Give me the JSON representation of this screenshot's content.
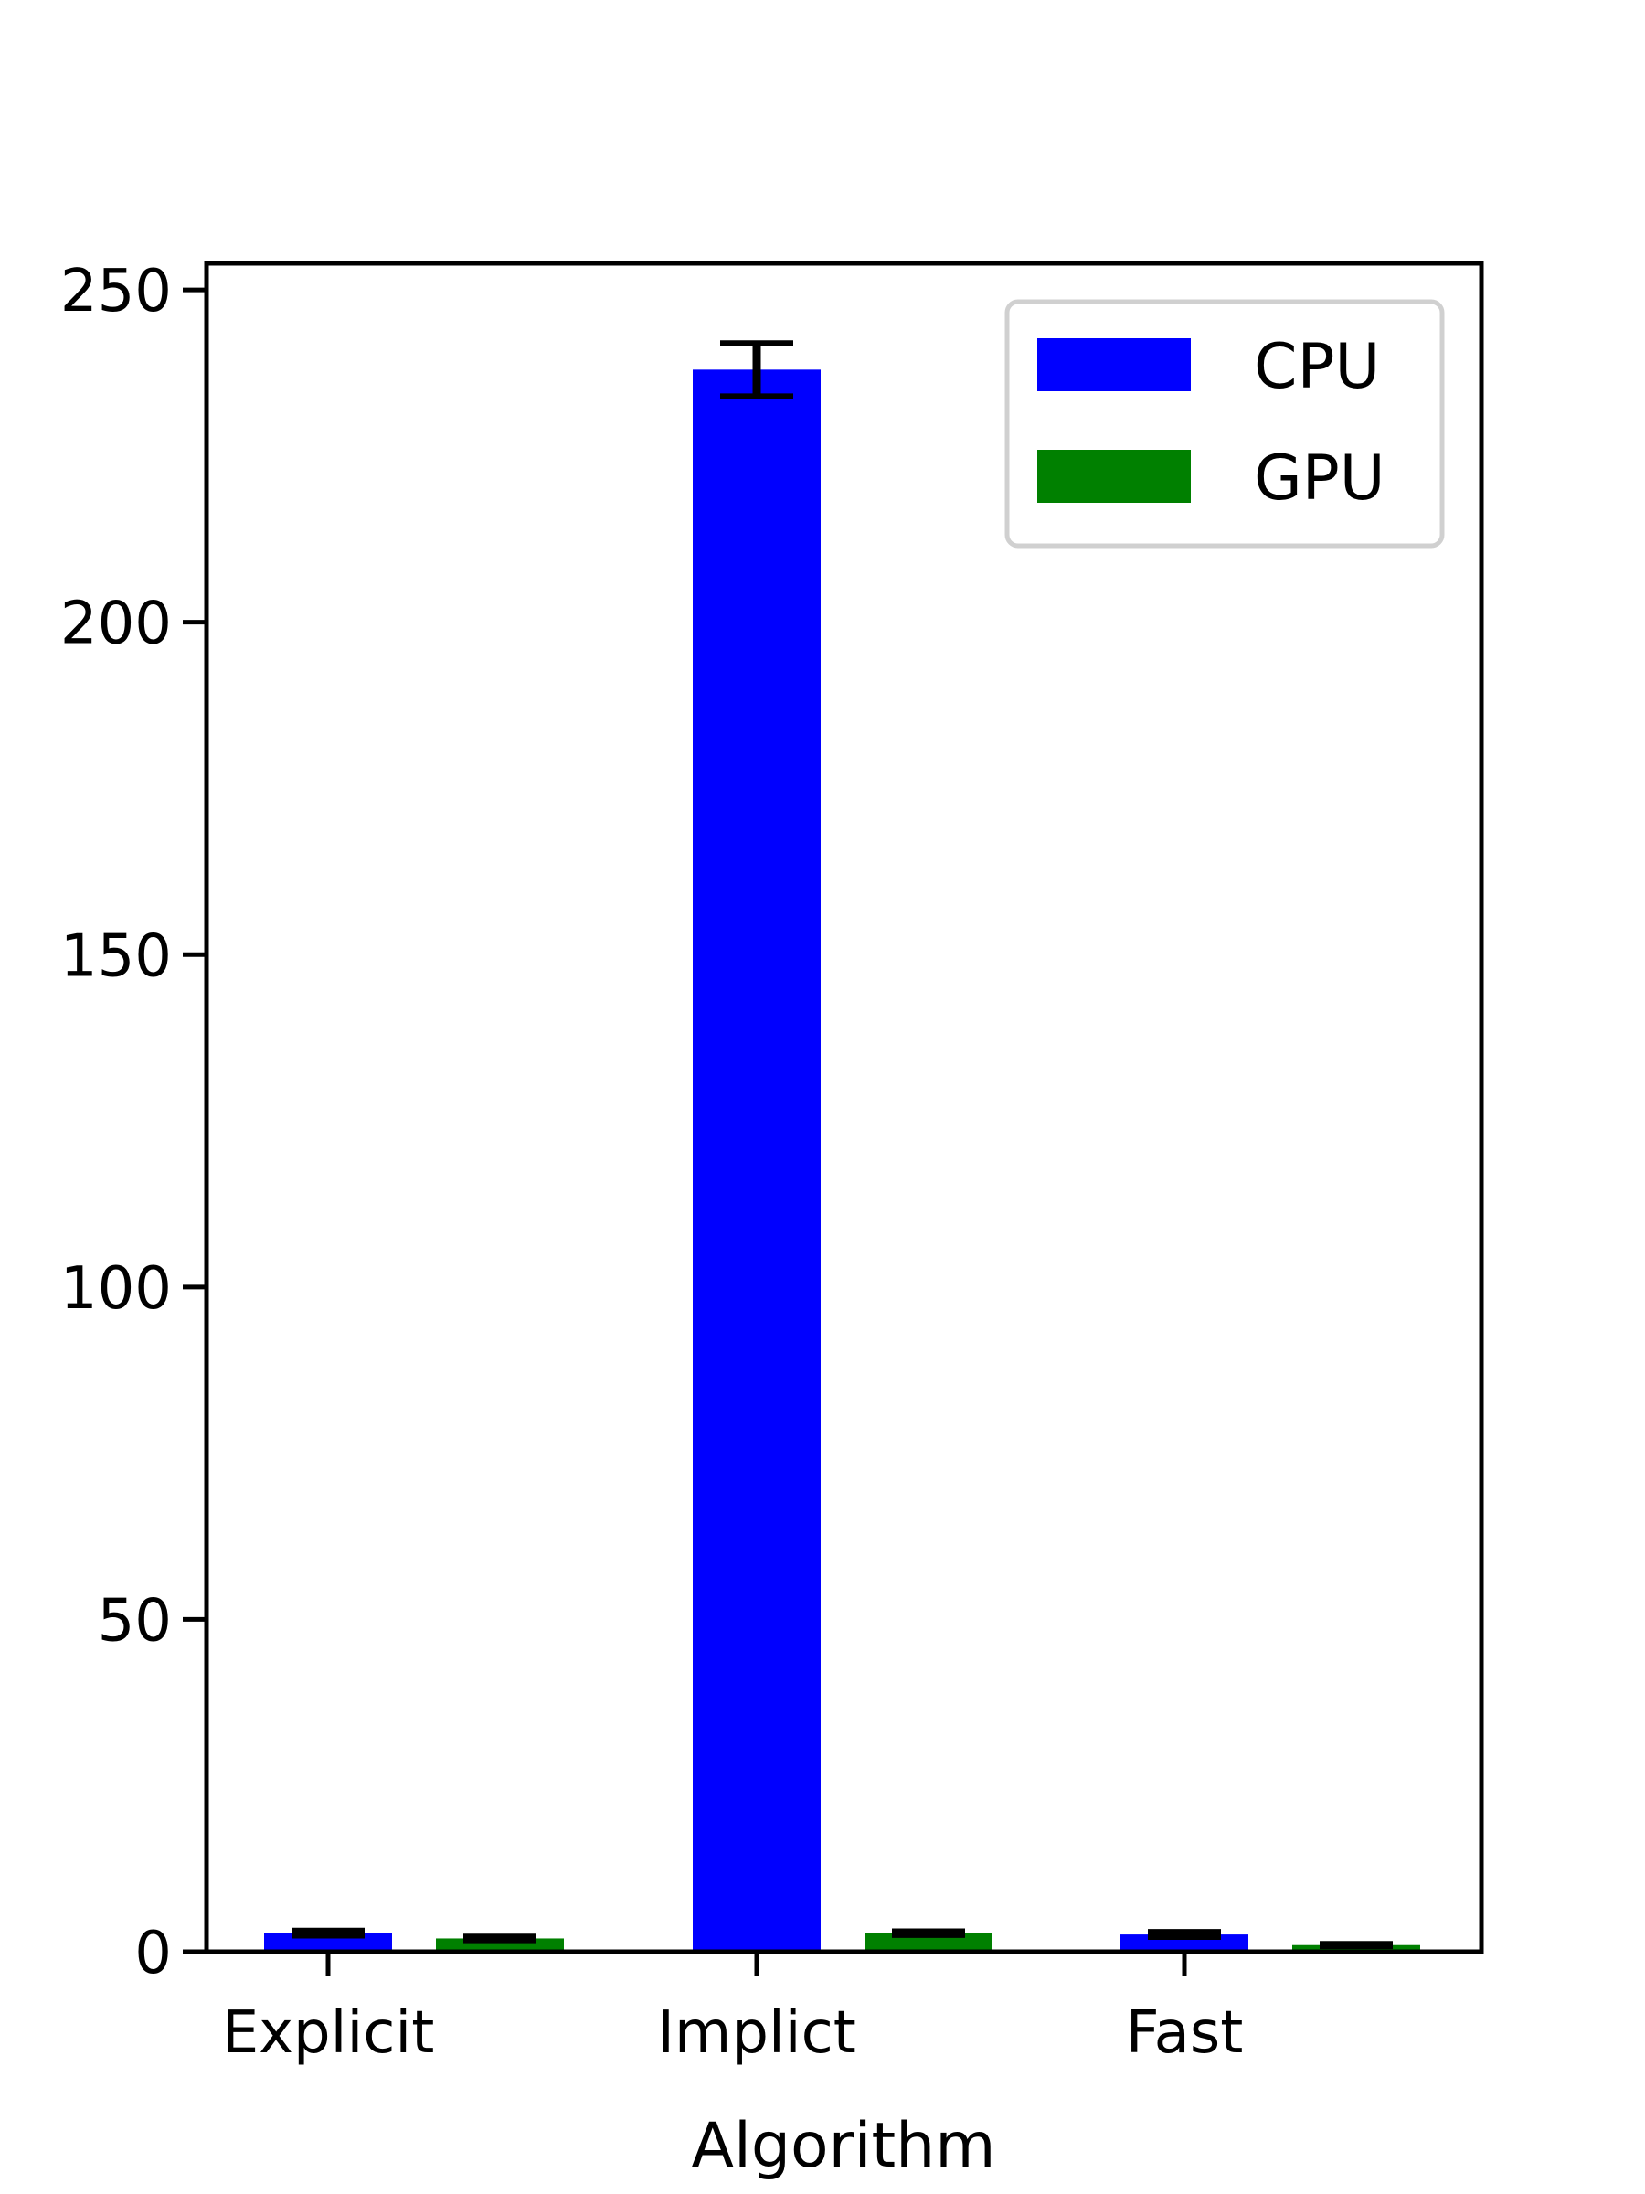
{
  "chart_data": {
    "type": "bar",
    "title": "",
    "xlabel": "Algorithm",
    "ylabel": "",
    "categories": [
      "Explicit",
      "Implict",
      "Fast"
    ],
    "series": [
      {
        "name": "CPU",
        "color": "#0000ff",
        "values": [
          2.8,
          238.0,
          2.6
        ],
        "errors": [
          0.4,
          4.0,
          0.4
        ]
      },
      {
        "name": "GPU",
        "color": "#008000",
        "values": [
          2.0,
          2.8,
          1.0
        ],
        "errors": [
          0.3,
          0.3,
          0.2
        ]
      }
    ],
    "ylim": [
      0,
      254
    ],
    "yticks": [
      0,
      50,
      100,
      150,
      200,
      250
    ],
    "grid": false,
    "legend_position": "top-right"
  }
}
